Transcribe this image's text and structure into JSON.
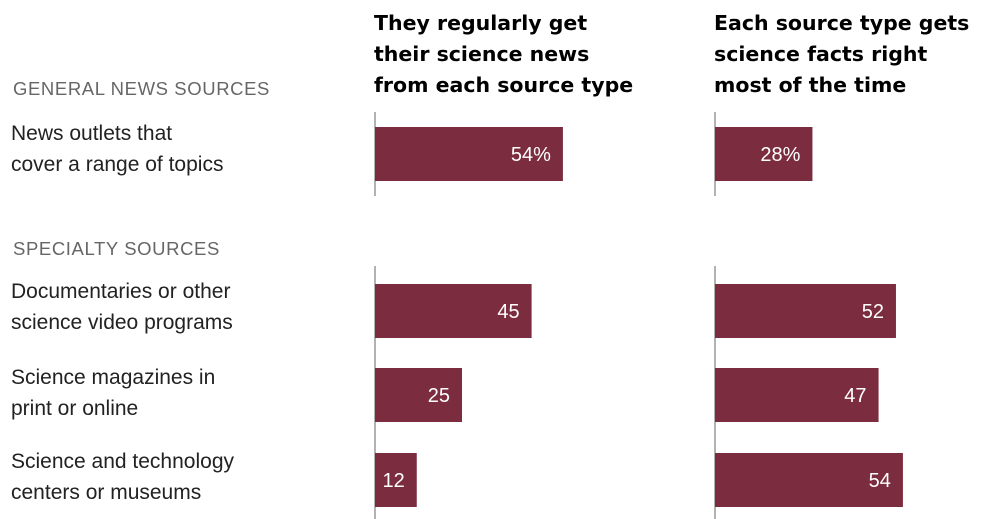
{
  "chart_data": [
    {
      "type": "bar",
      "title": "They regularly get their science news from each source type",
      "title_lines": [
        "They regularly get",
        "their science news",
        "from each source type"
      ],
      "categories": [
        "News outlets that cover a range of topics",
        "Documentaries or other science video programs",
        "Science magazines in print or online",
        "Science and technology centers or museums"
      ],
      "values": [
        54,
        45,
        25,
        12
      ],
      "value_labels": [
        "54%",
        "45",
        "25",
        "12"
      ],
      "unit": "%"
    },
    {
      "type": "bar",
      "title": "Each source type gets science facts right most of the time",
      "title_lines": [
        "Each source type gets",
        "science facts right",
        "most of the time"
      ],
      "categories": [
        "News outlets that cover a range of topics",
        "Documentaries or other science video programs",
        "Science magazines in print or online",
        "Science and technology centers or museums"
      ],
      "values": [
        28,
        52,
        47,
        54
      ],
      "value_labels": [
        "28%",
        "52",
        "47",
        "54"
      ],
      "unit": "%"
    }
  ],
  "sections": {
    "general": "GENERAL NEWS SOURCES",
    "specialty": "SPECIALTY SOURCES"
  },
  "rows": [
    {
      "line1": "News outlets that",
      "line2": "cover a range of topics"
    },
    {
      "line1": "Documentaries or other",
      "line2": "science video programs"
    },
    {
      "line1": "Science magazines in",
      "line2": "print or online"
    },
    {
      "line1": "Science and technology",
      "line2": "centers or museums"
    }
  ],
  "colors": {
    "bar": "#7b2d3f",
    "bar_label": "#ffffff",
    "axis": "#999999"
  }
}
